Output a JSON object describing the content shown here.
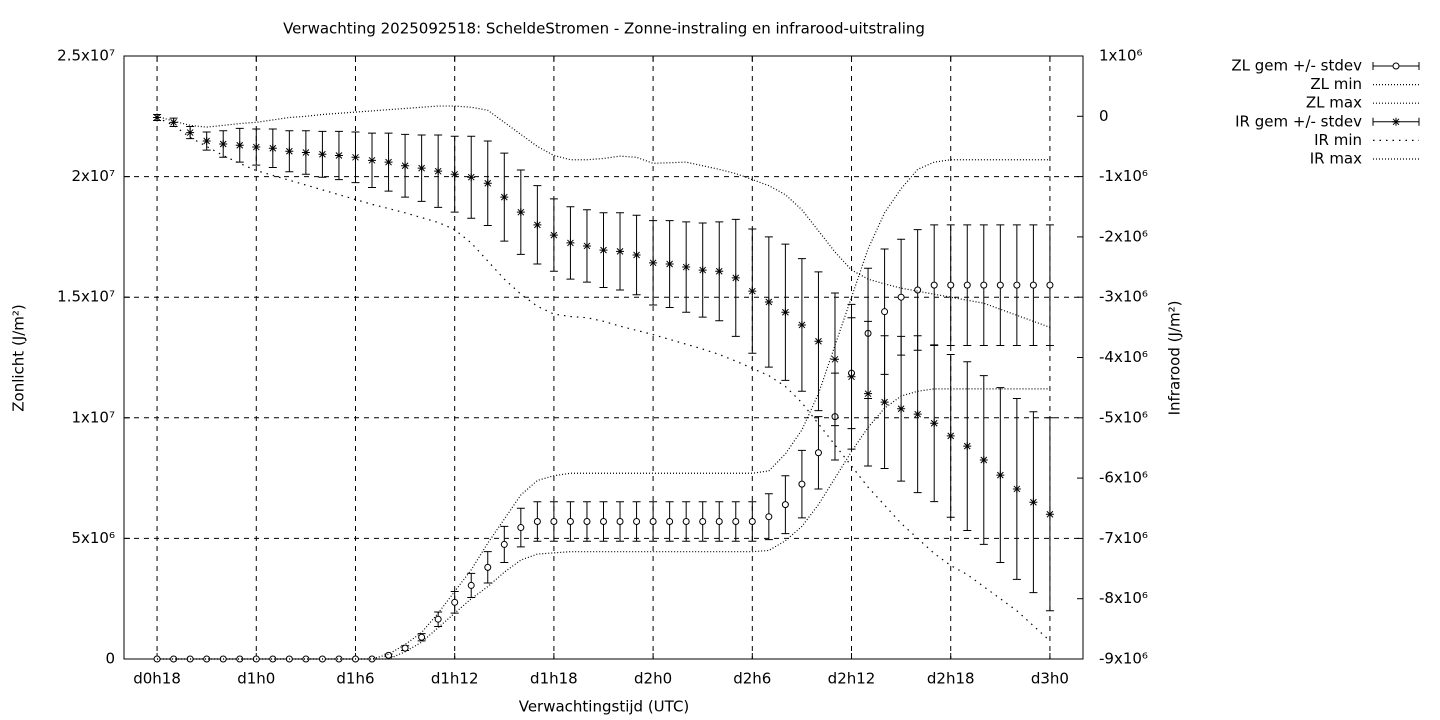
{
  "chart_data": {
    "type": "line",
    "title": "Verwachting 2025092518: ScheldeStromen - Zonne-instraling en infrarood-uitstraling",
    "xlabel": "Verwachtingstijd (UTC)",
    "ylabel": "Zonlicht (J/m²)",
    "y2label": "Infrarood (J/m²)",
    "xlim": [
      16,
      74
    ],
    "xticks": [
      {
        "value": 18,
        "label": "d0h18"
      },
      {
        "value": 24,
        "label": "d1h0"
      },
      {
        "value": 30,
        "label": "d1h6"
      },
      {
        "value": 36,
        "label": "d1h12"
      },
      {
        "value": 42,
        "label": "d1h18"
      },
      {
        "value": 48,
        "label": "d2h0"
      },
      {
        "value": 54,
        "label": "d2h6"
      },
      {
        "value": 60,
        "label": "d2h12"
      },
      {
        "value": 66,
        "label": "d2h18"
      },
      {
        "value": 72,
        "label": "d3h0"
      }
    ],
    "ylim": [
      0,
      25000000.0
    ],
    "yticks": [
      0,
      {
        "value": 5000000.0,
        "label": "5x10⁶"
      },
      {
        "value": 10000000.0,
        "label": "1x10⁷"
      },
      {
        "value": 15000000.0,
        "label": "1.5x10⁷"
      },
      {
        "value": 20000000.0,
        "label": "2x10⁷"
      },
      {
        "value": 25000000.0,
        "label": "2.5x10⁷"
      }
    ],
    "y2lim": [
      -9000000.0,
      1000000.0
    ],
    "y2ticks": [
      {
        "value": 1000000.0,
        "label": "1x10⁶"
      },
      0,
      {
        "value": -1000000.0,
        "label": "-1x10⁶"
      },
      {
        "value": -2000000.0,
        "label": "-2x10⁶"
      },
      {
        "value": -3000000.0,
        "label": "-3x10⁶"
      },
      {
        "value": -4000000.0,
        "label": "-4x10⁶"
      },
      {
        "value": -5000000.0,
        "label": "-5x10⁶"
      },
      {
        "value": -6000000.0,
        "label": "-6x10⁶"
      },
      {
        "value": -7000000.0,
        "label": "-7x10⁶"
      },
      {
        "value": -8000000.0,
        "label": "-8x10⁶"
      },
      {
        "value": -9000000.0,
        "label": "-9x10⁶"
      }
    ],
    "grid": true,
    "legend": "outside-top-right",
    "x": [
      18,
      19,
      20,
      21,
      22,
      23,
      24,
      25,
      26,
      27,
      28,
      29,
      30,
      31,
      32,
      33,
      34,
      35,
      36,
      37,
      38,
      39,
      40,
      41,
      42,
      43,
      44,
      45,
      46,
      47,
      48,
      49,
      50,
      51,
      52,
      53,
      54,
      55,
      56,
      57,
      58,
      59,
      60,
      61,
      62,
      63,
      64,
      65,
      66,
      67,
      68,
      69,
      70,
      71,
      72
    ],
    "series": [
      {
        "name": "ZL gem +/- stdev",
        "color": "#000000",
        "style": "errorbars",
        "marker": "circle",
        "values": [
          0,
          0,
          0,
          0,
          0,
          0,
          0,
          0,
          0,
          0,
          0,
          0,
          0,
          0,
          150000.0,
          450000.0,
          900000.0,
          1650000.0,
          2350000.0,
          3050000.0,
          3800000.0,
          4750000.0,
          5450000.0,
          5700000.0,
          5700000.0,
          5700000.0,
          5700000.0,
          5700000.0,
          5700000.0,
          5700000.0,
          5700000.0,
          5700000.0,
          5700000.0,
          5700000.0,
          5700000.0,
          5700000.0,
          5700000.0,
          5900000.0,
          6400000.0,
          7250000.0,
          8550000.0,
          10050000.0,
          11850000.0,
          13500000.0,
          14400000.0,
          15000000.0,
          15300000.0,
          15500000.0,
          15500000.0,
          15500000.0,
          15500000.0,
          15500000.0,
          15500000.0,
          15500000.0,
          15500000.0
        ],
        "errors": [
          0,
          0,
          0,
          0,
          0,
          0,
          0,
          0,
          0,
          0,
          0,
          0,
          0,
          0,
          50000.0,
          100000.0,
          150000.0,
          300000.0,
          450000.0,
          500000.0,
          650000.0,
          750000.0,
          800000.0,
          820000.0,
          820000.0,
          820000.0,
          820000.0,
          820000.0,
          820000.0,
          820000.0,
          820000.0,
          820000.0,
          820000.0,
          820000.0,
          820000.0,
          820000.0,
          820000.0,
          950000.0,
          1200000.0,
          1400000.0,
          1500000.0,
          1800000.0,
          2300000.0,
          2700000.0,
          2600000.0,
          2400000.0,
          2500000.0,
          2500000.0,
          2500000.0,
          2500000.0,
          2500000.0,
          2500000.0,
          2500000.0,
          2500000.0,
          2500000.0
        ]
      },
      {
        "name": "ZL min",
        "color": "#000000",
        "style": "dotted",
        "dash": "1 2",
        "values": [
          0,
          0,
          0,
          0,
          0,
          0,
          0,
          0,
          0,
          0,
          0,
          0,
          0,
          0,
          0,
          300000.0,
          700000.0,
          1300000.0,
          1900000.0,
          2500000.0,
          3000000.0,
          3600000.0,
          4100000.0,
          4350000.0,
          4400000.0,
          4450000.0,
          4450000.0,
          4450000.0,
          4450000.0,
          4450000.0,
          4450000.0,
          4450000.0,
          4450000.0,
          4450000.0,
          4450000.0,
          4450000.0,
          4450000.0,
          4500000.0,
          4900000.0,
          5500000.0,
          6400000.0,
          7500000.0,
          8600000.0,
          9600000.0,
          10400000.0,
          10900000.0,
          11100000.0,
          11200000.0,
          11200000.0,
          11200000.0,
          11200000.0,
          11200000.0,
          11200000.0,
          11200000.0,
          11200000.0
        ]
      },
      {
        "name": "ZL max",
        "color": "#000000",
        "style": "dotted",
        "dash": "1 2",
        "values": [
          0,
          0,
          0,
          0,
          0,
          0,
          0,
          0,
          0,
          0,
          0,
          0,
          0,
          0,
          200000.0,
          600000.0,
          1100000.0,
          1900000.0,
          2800000.0,
          3700000.0,
          4800000.0,
          5800000.0,
          6800000.0,
          7400000.0,
          7600000.0,
          7700000.0,
          7700000.0,
          7700000.0,
          7700000.0,
          7700000.0,
          7700000.0,
          7700000.0,
          7700000.0,
          7700000.0,
          7700000.0,
          7700000.0,
          7700000.0,
          7800000.0,
          8500000.0,
          9500000.0,
          11000000.0,
          13000000.0,
          15000000.0,
          17000000.0,
          18500000.0,
          19500000.0,
          20300000.0,
          20600000.0,
          20700000.0,
          20700000.0,
          20700000.0,
          20700000.0,
          20700000.0,
          20700000.0,
          20700000.0
        ]
      },
      {
        "name": "IR gem +/- stdev",
        "color": "#000000",
        "style": "errorbars",
        "marker": "star",
        "axis": "y2",
        "values": [
          -20000.0,
          -100000.0,
          -270000.0,
          -410000.0,
          -460000.0,
          -480000.0,
          -510000.0,
          -530000.0,
          -580000.0,
          -600000.0,
          -630000.0,
          -650000.0,
          -680000.0,
          -730000.0,
          -760000.0,
          -820000.0,
          -860000.0,
          -910000.0,
          -960000.0,
          -1010000.0,
          -1110000.0,
          -1340000.0,
          -1590000.0,
          -1800000.0,
          -1970000.0,
          -2100000.0,
          -2150000.0,
          -2220000.0,
          -2240000.0,
          -2300000.0,
          -2430000.0,
          -2450000.0,
          -2500000.0,
          -2550000.0,
          -2570000.0,
          -2680000.0,
          -2900000.0,
          -3080000.0,
          -3250000.0,
          -3460000.0,
          -3730000.0,
          -4030000.0,
          -4320000.0,
          -4600000.0,
          -4740000.0,
          -4850000.0,
          -4940000.0,
          -5090000.0,
          -5300000.0,
          -5470000.0,
          -5700000.0,
          -5950000.0,
          -6180000.0,
          -6400000.0,
          -6600000.0
        ],
        "errors": [
          50000.0,
          70000.0,
          100000.0,
          150000.0,
          220000.0,
          280000.0,
          300000.0,
          320000.0,
          340000.0,
          360000.0,
          380000.0,
          400000.0,
          420000.0,
          450000.0,
          480000.0,
          520000.0,
          550000.0,
          600000.0,
          630000.0,
          680000.0,
          700000.0,
          730000.0,
          700000.0,
          650000.0,
          600000.0,
          600000.0,
          600000.0,
          620000.0,
          640000.0,
          660000.0,
          700000.0,
          720000.0,
          750000.0,
          780000.0,
          820000.0,
          970000.0,
          1030000.0,
          1080000.0,
          1130000.0,
          1100000.0,
          1150000.0,
          1100000.0,
          1200000.0,
          1200000.0,
          1100000.0,
          1200000.0,
          1300000.0,
          1300000.0,
          1350000.0,
          1400000.0,
          1400000.0,
          1450000.0,
          1500000.0,
          1500000.0,
          1600000.0
        ]
      },
      {
        "name": "IR min",
        "color": "#000000",
        "style": "dotted",
        "dash": "1.5 5",
        "axis": "y2",
        "values": [
          -20000.0,
          -150000.0,
          -350000.0,
          -500000.0,
          -650000.0,
          -780000.0,
          -900000.0,
          -980000.0,
          -1060000.0,
          -1140000.0,
          -1220000.0,
          -1300000.0,
          -1380000.0,
          -1460000.0,
          -1530000.0,
          -1600000.0,
          -1680000.0,
          -1760000.0,
          -1880000.0,
          -2100000.0,
          -2400000.0,
          -2700000.0,
          -2950000.0,
          -3150000.0,
          -3280000.0,
          -3320000.0,
          -3340000.0,
          -3400000.0,
          -3480000.0,
          -3550000.0,
          -3620000.0,
          -3700000.0,
          -3780000.0,
          -3860000.0,
          -3950000.0,
          -4060000.0,
          -4180000.0,
          -4300000.0,
          -4480000.0,
          -4750000.0,
          -5100000.0,
          -5450000.0,
          -5800000.0,
          -6150000.0,
          -6450000.0,
          -6750000.0,
          -7000000.0,
          -7250000.0,
          -7450000.0,
          -7600000.0,
          -7800000.0,
          -8000000.0,
          -8200000.0,
          -8450000.0,
          -8700000.0
        ]
      },
      {
        "name": "IR max",
        "color": "#000000",
        "style": "dotted",
        "dash": "1 2",
        "axis": "y2",
        "values": [
          0,
          -80000.0,
          -150000.0,
          -180000.0,
          -150000.0,
          -120000.0,
          -100000.0,
          -60000.0,
          -20000.0,
          0,
          30000.0,
          50000.0,
          70000.0,
          90000.0,
          110000.0,
          130000.0,
          150000.0,
          170000.0,
          170000.0,
          150000.0,
          100000.0,
          -100000.0,
          -300000.0,
          -500000.0,
          -650000.0,
          -720000.0,
          -720000.0,
          -700000.0,
          -660000.0,
          -680000.0,
          -780000.0,
          -770000.0,
          -760000.0,
          -820000.0,
          -880000.0,
          -950000.0,
          -1050000.0,
          -1150000.0,
          -1300000.0,
          -1550000.0,
          -1900000.0,
          -2250000.0,
          -2550000.0,
          -2700000.0,
          -2780000.0,
          -2850000.0,
          -2900000.0,
          -2950000.0,
          -3000000.0,
          -3050000.0,
          -3100000.0,
          -3200000.0,
          -3300000.0,
          -3400000.0,
          -3500000.0
        ]
      }
    ]
  }
}
